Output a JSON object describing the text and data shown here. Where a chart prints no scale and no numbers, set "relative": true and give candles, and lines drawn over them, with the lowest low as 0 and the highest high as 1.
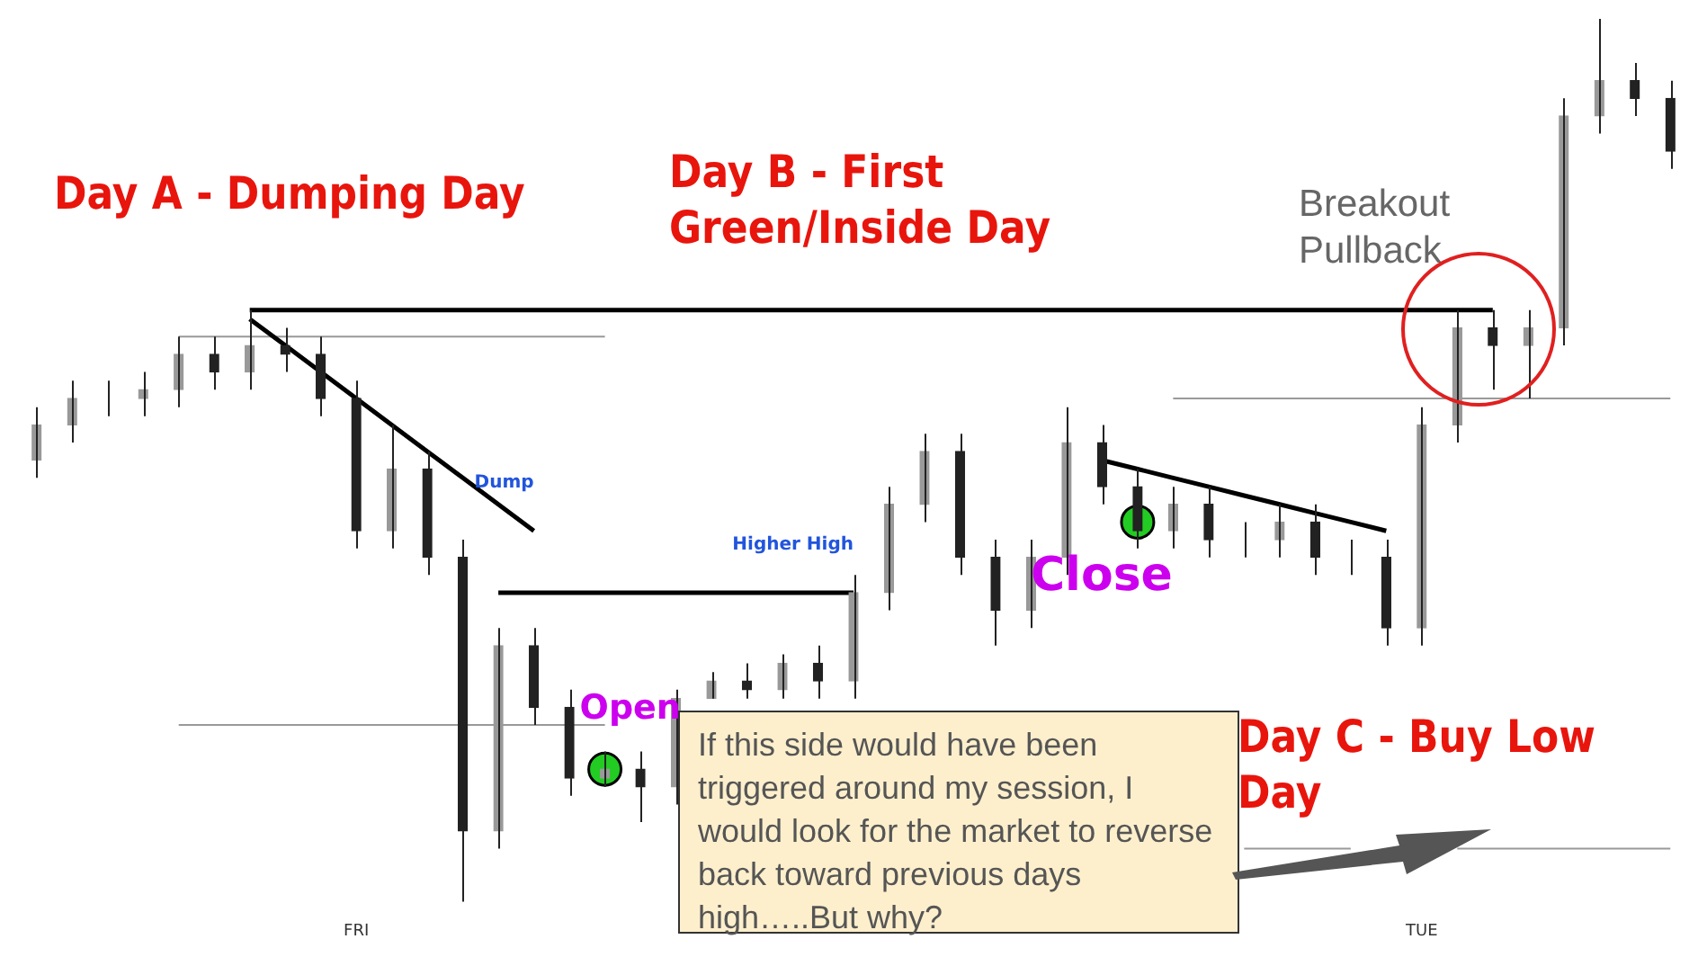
{
  "chart_data": {
    "type": "candlestick",
    "relative": true,
    "categories": [
      null,
      null,
      null,
      null,
      null,
      null,
      null,
      null,
      null,
      "FRI",
      null,
      null,
      null,
      null,
      null,
      null,
      null,
      null,
      null,
      null,
      null,
      null,
      null,
      null,
      null,
      null,
      null,
      null,
      null,
      null,
      null,
      null,
      null,
      null,
      null,
      null,
      null,
      null,
      null,
      "TUE",
      null,
      null,
      null,
      null,
      null,
      null,
      null
    ],
    "ohlc": [
      [
        0.5,
        0.56,
        0.48,
        0.54
      ],
      [
        0.54,
        0.59,
        0.52,
        0.57
      ],
      [
        0.57,
        0.59,
        0.55,
        0.57
      ],
      [
        0.57,
        0.6,
        0.55,
        0.58
      ],
      [
        0.58,
        0.64,
        0.56,
        0.62
      ],
      [
        0.62,
        0.64,
        0.58,
        0.6
      ],
      [
        0.6,
        0.67,
        0.58,
        0.63
      ],
      [
        0.63,
        0.65,
        0.6,
        0.62
      ],
      [
        0.62,
        0.64,
        0.55,
        0.57
      ],
      [
        0.57,
        0.59,
        0.4,
        0.42
      ],
      [
        0.42,
        0.54,
        0.4,
        0.49
      ],
      [
        0.49,
        0.51,
        0.37,
        0.39
      ],
      [
        0.39,
        0.41,
        0.0,
        0.08
      ],
      [
        0.08,
        0.31,
        0.06,
        0.29
      ],
      [
        0.29,
        0.31,
        0.2,
        0.22
      ],
      [
        0.22,
        0.24,
        0.12,
        0.14
      ],
      [
        0.14,
        0.17,
        0.13,
        0.15
      ],
      [
        0.15,
        0.17,
        0.09,
        0.13
      ],
      [
        0.13,
        0.24,
        0.11,
        0.23
      ],
      [
        0.23,
        0.26,
        0.23,
        0.25
      ],
      [
        0.25,
        0.27,
        0.23,
        0.24
      ],
      [
        0.24,
        0.28,
        0.23,
        0.27
      ],
      [
        0.27,
        0.29,
        0.23,
        0.25
      ],
      [
        0.25,
        0.37,
        0.23,
        0.35
      ],
      [
        0.35,
        0.47,
        0.33,
        0.45
      ],
      [
        0.45,
        0.53,
        0.43,
        0.51
      ],
      [
        0.51,
        0.53,
        0.37,
        0.39
      ],
      [
        0.39,
        0.41,
        0.29,
        0.33
      ],
      [
        0.33,
        0.41,
        0.31,
        0.39
      ],
      [
        0.39,
        0.56,
        0.37,
        0.52
      ],
      [
        0.52,
        0.54,
        0.45,
        0.47
      ],
      [
        0.47,
        0.49,
        0.4,
        0.42
      ],
      [
        0.42,
        0.47,
        0.4,
        0.45
      ],
      [
        0.45,
        0.47,
        0.39,
        0.41
      ],
      [
        0.41,
        0.43,
        0.39,
        0.41
      ],
      [
        0.41,
        0.45,
        0.39,
        0.43
      ],
      [
        0.43,
        0.45,
        0.37,
        0.39
      ],
      [
        0.39,
        0.41,
        0.37,
        0.39
      ],
      [
        0.39,
        0.41,
        0.29,
        0.31
      ],
      [
        0.31,
        0.56,
        0.29,
        0.54
      ],
      [
        0.54,
        0.67,
        0.52,
        0.65
      ],
      [
        0.65,
        0.67,
        0.58,
        0.63
      ],
      [
        0.63,
        0.67,
        0.57,
        0.65
      ],
      [
        0.65,
        0.91,
        0.63,
        0.89
      ],
      [
        0.89,
        1.0,
        0.87,
        0.93
      ],
      [
        0.93,
        0.95,
        0.89,
        0.91
      ],
      [
        0.91,
        0.93,
        0.83,
        0.85
      ]
    ],
    "color": "#222222",
    "colors": [
      "#999999",
      "#999999",
      "#999999",
      "#999999",
      "#999999",
      "#222222",
      "#999999",
      "#222222",
      "#222222",
      "#222222",
      "#999999",
      "#222222",
      "#222222",
      "#999999",
      "#222222",
      "#222222",
      "#999999",
      "#222222",
      "#999999",
      "#999999",
      "#222222",
      "#999999",
      "#222222",
      "#999999",
      "#999999",
      "#999999",
      "#222222",
      "#222222",
      "#999999",
      "#999999",
      "#222222",
      "#222222",
      "#999999",
      "#222222",
      "#999999",
      "#999999",
      "#222222",
      "#999999",
      "#222222",
      "#999999",
      "#999999",
      "#222222",
      "#999999",
      "#999999",
      "#999999",
      "#222222",
      "#222222"
    ],
    "series": [
      {
        "type": "line",
        "color": "#000000",
        "values": [
          null,
          null,
          null,
          null,
          null,
          null,
          0.67,
          0.67,
          0.67,
          0.67,
          0.67,
          0.67,
          0.67,
          0.67,
          0.67,
          0.67,
          0.67,
          0.67,
          0.67,
          0.67,
          0.67,
          0.67,
          0.67,
          0.67,
          0.67,
          0.67,
          0.67,
          0.67,
          0.67,
          0.67,
          0.67,
          0.67,
          0.67,
          0.67,
          0.67,
          0.67,
          0.67,
          0.67,
          0.67,
          0.67,
          0.67,
          0.67,
          null,
          null,
          null,
          null,
          null
        ]
      },
      {
        "type": "line",
        "name": "Dump",
        "color": "#000000",
        "values": [
          null,
          null,
          null,
          null,
          null,
          null,
          0.66,
          0.63,
          0.6,
          0.57,
          0.54,
          0.51,
          0.48,
          0.45,
          0.42,
          null,
          null,
          null,
          null,
          null,
          null,
          null,
          null,
          null,
          null,
          null,
          null,
          null,
          null,
          null,
          null,
          null,
          null,
          null,
          null,
          null,
          null,
          null,
          null,
          null,
          null,
          null,
          null,
          null,
          null,
          null,
          null
        ]
      },
      {
        "type": "line",
        "name": "Higher High",
        "color": "#000000",
        "values": [
          null,
          null,
          null,
          null,
          null,
          null,
          null,
          null,
          null,
          null,
          null,
          null,
          null,
          0.35,
          0.35,
          0.35,
          0.35,
          0.35,
          0.35,
          0.35,
          0.35,
          0.35,
          0.35,
          0.35,
          null,
          null,
          null,
          null,
          null,
          null,
          null,
          null,
          null,
          null,
          null,
          null,
          null,
          null,
          null,
          null,
          null,
          null,
          null,
          null,
          null,
          null,
          null
        ]
      },
      {
        "type": "line",
        "color": "#000000",
        "values": [
          null,
          null,
          null,
          null,
          null,
          null,
          null,
          null,
          null,
          null,
          null,
          null,
          null,
          null,
          null,
          null,
          null,
          null,
          null,
          null,
          null,
          null,
          null,
          null,
          null,
          null,
          null,
          null,
          null,
          null,
          0.5,
          0.49,
          0.48,
          0.47,
          0.46,
          0.45,
          0.44,
          0.43,
          0.42,
          null,
          null,
          null,
          null,
          null,
          null,
          null,
          null
        ]
      },
      {
        "type": "line",
        "color": "#999999",
        "values": [
          null,
          null,
          null,
          null,
          0.64,
          0.64,
          0.64,
          0.64,
          0.64,
          0.64,
          0.64,
          0.64,
          0.64,
          0.64,
          0.64,
          0.64,
          0.64,
          null,
          null,
          null,
          null,
          null,
          null,
          null,
          null,
          null,
          null,
          null,
          null,
          null,
          null,
          null,
          null,
          null,
          null,
          null,
          null,
          null,
          null,
          null,
          null,
          null,
          null,
          null,
          null,
          null,
          null
        ]
      },
      {
        "type": "line",
        "color": "#999999",
        "values": [
          null,
          null,
          null,
          null,
          0.2,
          0.2,
          0.2,
          0.2,
          0.2,
          0.2,
          0.2,
          0.2,
          0.2,
          0.2,
          0.2,
          0.2,
          0.2,
          null,
          null,
          null,
          null,
          null,
          null,
          null,
          null,
          null,
          null,
          null,
          null,
          null,
          null,
          null,
          null,
          null,
          null,
          null,
          null,
          null,
          null,
          null,
          null,
          null,
          null,
          null,
          null,
          null,
          null
        ]
      },
      {
        "type": "line",
        "color": "#999999",
        "values": [
          null,
          null,
          null,
          null,
          null,
          null,
          null,
          null,
          null,
          null,
          null,
          null,
          null,
          null,
          null,
          null,
          null,
          null,
          null,
          null,
          null,
          null,
          null,
          null,
          null,
          null,
          null,
          null,
          null,
          null,
          null,
          null,
          0.57,
          0.57,
          0.57,
          0.57,
          0.57,
          0.57,
          0.57,
          0.57,
          0.57,
          0.57,
          0.57,
          0.57,
          0.57,
          0.57,
          0.57
        ]
      },
      {
        "type": "line",
        "color": "#999999",
        "values": [
          null,
          null,
          null,
          null,
          null,
          null,
          null,
          null,
          null,
          null,
          null,
          null,
          null,
          null,
          null,
          null,
          null,
          null,
          null,
          null,
          null,
          null,
          null,
          null,
          null,
          null,
          null,
          null,
          null,
          null,
          null,
          null,
          null,
          null,
          0.06,
          0.06,
          0.06,
          0.06,
          null,
          null,
          0.06,
          0.06,
          0.06,
          0.06,
          0.06,
          0.06,
          0.06
        ]
      },
      {
        "type": "scatter",
        "name": "Open",
        "color": "#22cc22",
        "values": [
          null,
          null,
          null,
          null,
          null,
          null,
          null,
          null,
          null,
          null,
          null,
          null,
          null,
          null,
          null,
          null,
          0.15,
          null,
          null,
          null,
          null,
          null,
          null,
          null,
          null,
          null,
          null,
          null,
          null,
          null,
          null,
          null,
          null,
          null,
          null,
          null,
          null,
          null,
          null,
          null,
          null,
          null,
          null,
          null,
          null,
          null,
          null
        ]
      },
      {
        "type": "scatter",
        "name": "Close",
        "color": "#22cc22",
        "values": [
          null,
          null,
          null,
          null,
          null,
          null,
          null,
          null,
          null,
          null,
          null,
          null,
          null,
          null,
          null,
          null,
          null,
          null,
          null,
          null,
          null,
          null,
          null,
          null,
          null,
          null,
          null,
          null,
          null,
          null,
          null,
          0.43,
          null,
          null,
          null,
          null,
          null,
          null,
          null,
          null,
          null,
          null,
          null,
          null,
          null,
          null,
          null
        ]
      }
    ],
    "annotations": [
      "Day A - Dumping Day",
      "Day B - First Green/Inside Day",
      "Day C - Buy Low Day",
      "Breakout Pullback",
      "If this side would have been triggered around my session, I would look for the market to reverse back toward previous days high…..But why?"
    ],
    "grid": false,
    "legend": false
  }
}
